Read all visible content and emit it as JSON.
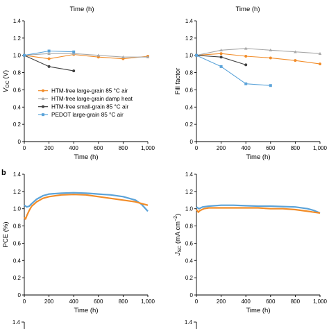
{
  "figure": {
    "panel_b_label": "b"
  },
  "chart_data": [
    {
      "id": "voc",
      "type": "line",
      "xlabel": "Time (h)",
      "ylabel": "V_OC (V)",
      "ylabel_parts": {
        "main": "V",
        "sub": "OC",
        "unit": " (V)"
      },
      "xlim": [
        0,
        1000
      ],
      "ylim": [
        0,
        1.4
      ],
      "xticks": [
        "0",
        "200",
        "400",
        "600",
        "800",
        "1,000"
      ],
      "yticks": [
        "0",
        "0.2",
        "0.4",
        "0.6",
        "0.8",
        "1.0",
        "1.2",
        "1.4"
      ],
      "legend_position": "bottom-left",
      "series": [
        {
          "name": "HTM-free large-grain 85 °C air",
          "color": "#f28c28",
          "marker": "circle",
          "x": [
            0,
            200,
            400,
            600,
            800,
            1000
          ],
          "y": [
            1.0,
            0.96,
            1.01,
            0.98,
            0.96,
            0.99
          ]
        },
        {
          "name": "HTM-free large-grain damp heat",
          "color": "#a8a8a8",
          "marker": "triangle",
          "x": [
            0,
            200,
            400,
            600,
            800,
            1000
          ],
          "y": [
            1.0,
            1.02,
            1.02,
            1.0,
            0.98,
            0.98
          ]
        },
        {
          "name": "HTM-free small-grain 85 °C air",
          "color": "#404040",
          "marker": "circle",
          "x": [
            0,
            200,
            400
          ],
          "y": [
            1.0,
            0.87,
            0.82
          ]
        },
        {
          "name": "PEDOT large-grain 85 °C air",
          "color": "#5ba3d9",
          "marker": "square",
          "x": [
            0,
            200,
            400
          ],
          "y": [
            1.0,
            1.05,
            1.04
          ]
        }
      ]
    },
    {
      "id": "ff",
      "type": "line",
      "xlabel": "Time (h)",
      "ylabel": "Fill factor",
      "xlim": [
        0,
        1000
      ],
      "ylim": [
        0,
        1.4
      ],
      "xticks": [
        "0",
        "200",
        "400",
        "600",
        "800",
        "1,000"
      ],
      "yticks": [
        "0",
        "0.2",
        "0.4",
        "0.6",
        "0.8",
        "1.0",
        "1.2",
        "1.4"
      ],
      "series": [
        {
          "color": "#f28c28",
          "marker": "circle",
          "x": [
            0,
            200,
            400,
            600,
            800,
            1000
          ],
          "y": [
            1.0,
            1.02,
            0.99,
            0.97,
            0.94,
            0.9
          ]
        },
        {
          "color": "#a8a8a8",
          "marker": "triangle",
          "x": [
            0,
            200,
            400,
            600,
            800,
            1000
          ],
          "y": [
            1.0,
            1.06,
            1.08,
            1.06,
            1.04,
            1.02
          ]
        },
        {
          "color": "#404040",
          "marker": "circle",
          "x": [
            0,
            200,
            400
          ],
          "y": [
            1.0,
            0.98,
            0.89
          ]
        },
        {
          "color": "#5ba3d9",
          "marker": "square",
          "x": [
            0,
            200,
            400,
            600
          ],
          "y": [
            1.0,
            0.87,
            0.67,
            0.65
          ]
        }
      ]
    },
    {
      "id": "pce",
      "type": "line",
      "xlabel": "Time (h)",
      "ylabel": "PCE (%)",
      "xlim": [
        0,
        1000
      ],
      "ylim": [
        0,
        1.4
      ],
      "xticks": [
        "0",
        "200",
        "400",
        "600",
        "800",
        "1,000"
      ],
      "yticks": [
        "0",
        "0.2",
        "0.4",
        "0.6",
        "0.8",
        "1.0",
        "1.2",
        "1.4"
      ],
      "series": [
        {
          "color": "#5ba3d9",
          "x": [
            0,
            20,
            40,
            60,
            100,
            150,
            200,
            300,
            400,
            500,
            600,
            700,
            800,
            900,
            950,
            1000
          ],
          "y": [
            1.04,
            1.02,
            1.03,
            1.06,
            1.11,
            1.15,
            1.17,
            1.18,
            1.185,
            1.18,
            1.17,
            1.16,
            1.14,
            1.1,
            1.05,
            0.97
          ]
        },
        {
          "color": "#f28c28",
          "x": [
            0,
            10,
            20,
            40,
            60,
            100,
            150,
            200,
            300,
            400,
            500,
            600,
            700,
            800,
            900,
            950,
            1000
          ],
          "y": [
            0.9,
            0.88,
            0.92,
            0.98,
            1.03,
            1.08,
            1.12,
            1.14,
            1.16,
            1.165,
            1.16,
            1.14,
            1.12,
            1.1,
            1.08,
            1.06,
            1.04
          ]
        }
      ]
    },
    {
      "id": "jsc",
      "type": "line",
      "xlabel": "Time (h)",
      "ylabel": "J_SC (mA cm^-2)",
      "ylabel_parts": {
        "main": "J",
        "sub": "SC",
        "unit": " (mA cm",
        "sup": "−2",
        "close": ")"
      },
      "xlim": [
        0,
        1000
      ],
      "ylim": [
        0,
        1.4
      ],
      "xticks": [
        "0",
        "200",
        "400",
        "600",
        "800",
        "1,000"
      ],
      "yticks": [
        "0",
        "0.2",
        "0.4",
        "0.6",
        "0.8",
        "1.0",
        "1.2",
        "1.4"
      ],
      "series": [
        {
          "color": "#5ba3d9",
          "x": [
            0,
            20,
            50,
            100,
            200,
            300,
            400,
            500,
            600,
            700,
            800,
            900,
            950,
            1000
          ],
          "y": [
            1.02,
            1.0,
            1.02,
            1.03,
            1.04,
            1.04,
            1.035,
            1.03,
            1.03,
            1.025,
            1.02,
            1.0,
            0.98,
            0.95
          ]
        },
        {
          "color": "#f28c28",
          "x": [
            0,
            15,
            30,
            60,
            100,
            200,
            300,
            400,
            500,
            600,
            700,
            800,
            900,
            950,
            1000
          ],
          "y": [
            0.99,
            0.96,
            0.98,
            1.0,
            1.01,
            1.01,
            1.01,
            1.01,
            1.01,
            1.0,
            1.0,
            0.99,
            0.97,
            0.96,
            0.95
          ]
        }
      ]
    }
  ],
  "partial": {
    "top_xlabel": "Time (h)",
    "bottom_ytick": "1.4"
  }
}
